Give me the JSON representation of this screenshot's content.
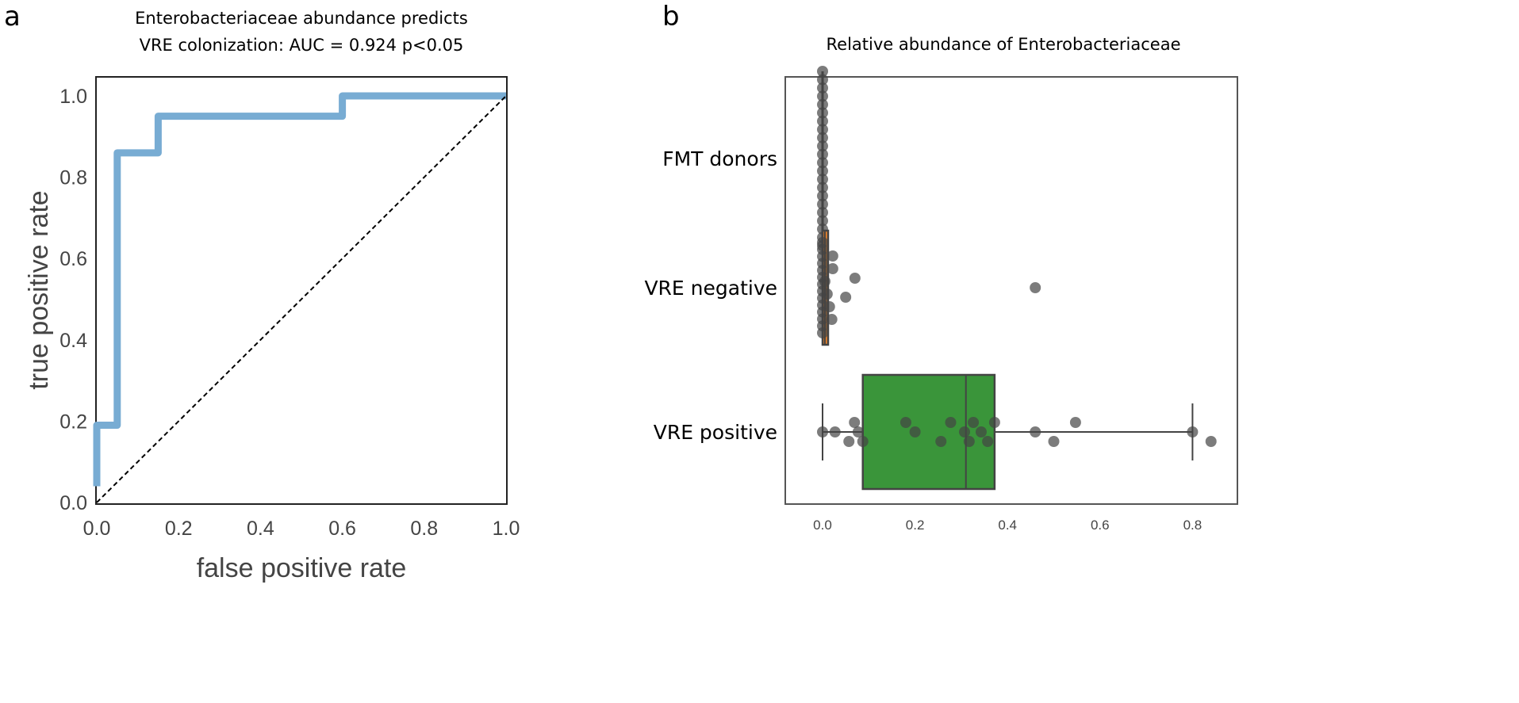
{
  "panel_labels": {
    "a": "a",
    "b": "b"
  },
  "chart_data": [
    {
      "type": "line",
      "title_lines": [
        "Enterobacteriaceae abundance predicts",
        "VRE colonization: AUC = 0.924 p<0.05"
      ],
      "xlabel": "false positive rate",
      "ylabel": "true positive rate",
      "xlim": [
        0,
        1.0
      ],
      "ylim": [
        0,
        1.03
      ],
      "xticks": [
        "0.0",
        "0.2",
        "0.4",
        "0.6",
        "0.8",
        "1.0"
      ],
      "yticks": [
        "0.0",
        "0.2",
        "0.4",
        "0.6",
        "0.8",
        "1.0"
      ],
      "grid": false,
      "series": [
        {
          "x": [
            0,
            0,
            0.05,
            0.05,
            0.15,
            0.15,
            0.6,
            0.6,
            1.0
          ],
          "y": [
            0.04,
            0.19,
            0.19,
            0.86,
            0.86,
            0.95,
            0.95,
            1.0,
            1.0
          ],
          "color": "#78acd3",
          "style": "step"
        },
        {
          "x": [
            0,
            1
          ],
          "y": [
            0,
            1
          ],
          "color": "#000000",
          "style": "dashed"
        }
      ]
    },
    {
      "type": "box",
      "orientation": "horizontal",
      "title": "Relative abundance of Enterobacteriaceae",
      "xlim": [
        -0.03,
        0.95
      ],
      "xticks": [
        "0.0",
        "0.2",
        "0.4",
        "0.6",
        "0.8"
      ],
      "grid": false,
      "categories": [
        "FMT donors",
        "VRE negative",
        "VRE positive"
      ],
      "boxes": [
        {
          "name": "FMT donors",
          "min": 0,
          "q1": 0,
          "median": 0,
          "q3": 0,
          "max": 0,
          "color": "#1f77b4"
        },
        {
          "name": "VRE negative",
          "min": 0,
          "q1": 0,
          "median": 0.005,
          "q3": 0.012,
          "max": 0.022,
          "color": "#e8822a"
        },
        {
          "name": "VRE positive",
          "min": 0,
          "q1": 0.087,
          "median": 0.31,
          "q3": 0.372,
          "max": 0.8,
          "color": "#3a953a"
        }
      ],
      "points": [
        [
          0,
          0,
          0,
          0,
          0,
          0,
          0,
          0,
          0,
          0,
          0,
          0,
          0,
          0,
          0,
          0,
          0,
          0,
          0,
          0,
          0,
          0
        ],
        [
          0,
          0,
          0,
          0,
          0,
          0,
          0,
          0,
          0,
          0,
          0,
          0,
          0,
          0,
          0.005,
          0.01,
          0.015,
          0.02,
          0.022,
          0.022,
          0.05,
          0.07,
          0.46
        ],
        [
          0,
          0.027,
          0.057,
          0.069,
          0.077,
          0.087,
          0.18,
          0.2,
          0.256,
          0.277,
          0.307,
          0.317,
          0.326,
          0.343,
          0.357,
          0.372,
          0.46,
          0.5,
          0.547,
          0.8,
          0.84
        ]
      ],
      "point_color": "#444444"
    }
  ]
}
